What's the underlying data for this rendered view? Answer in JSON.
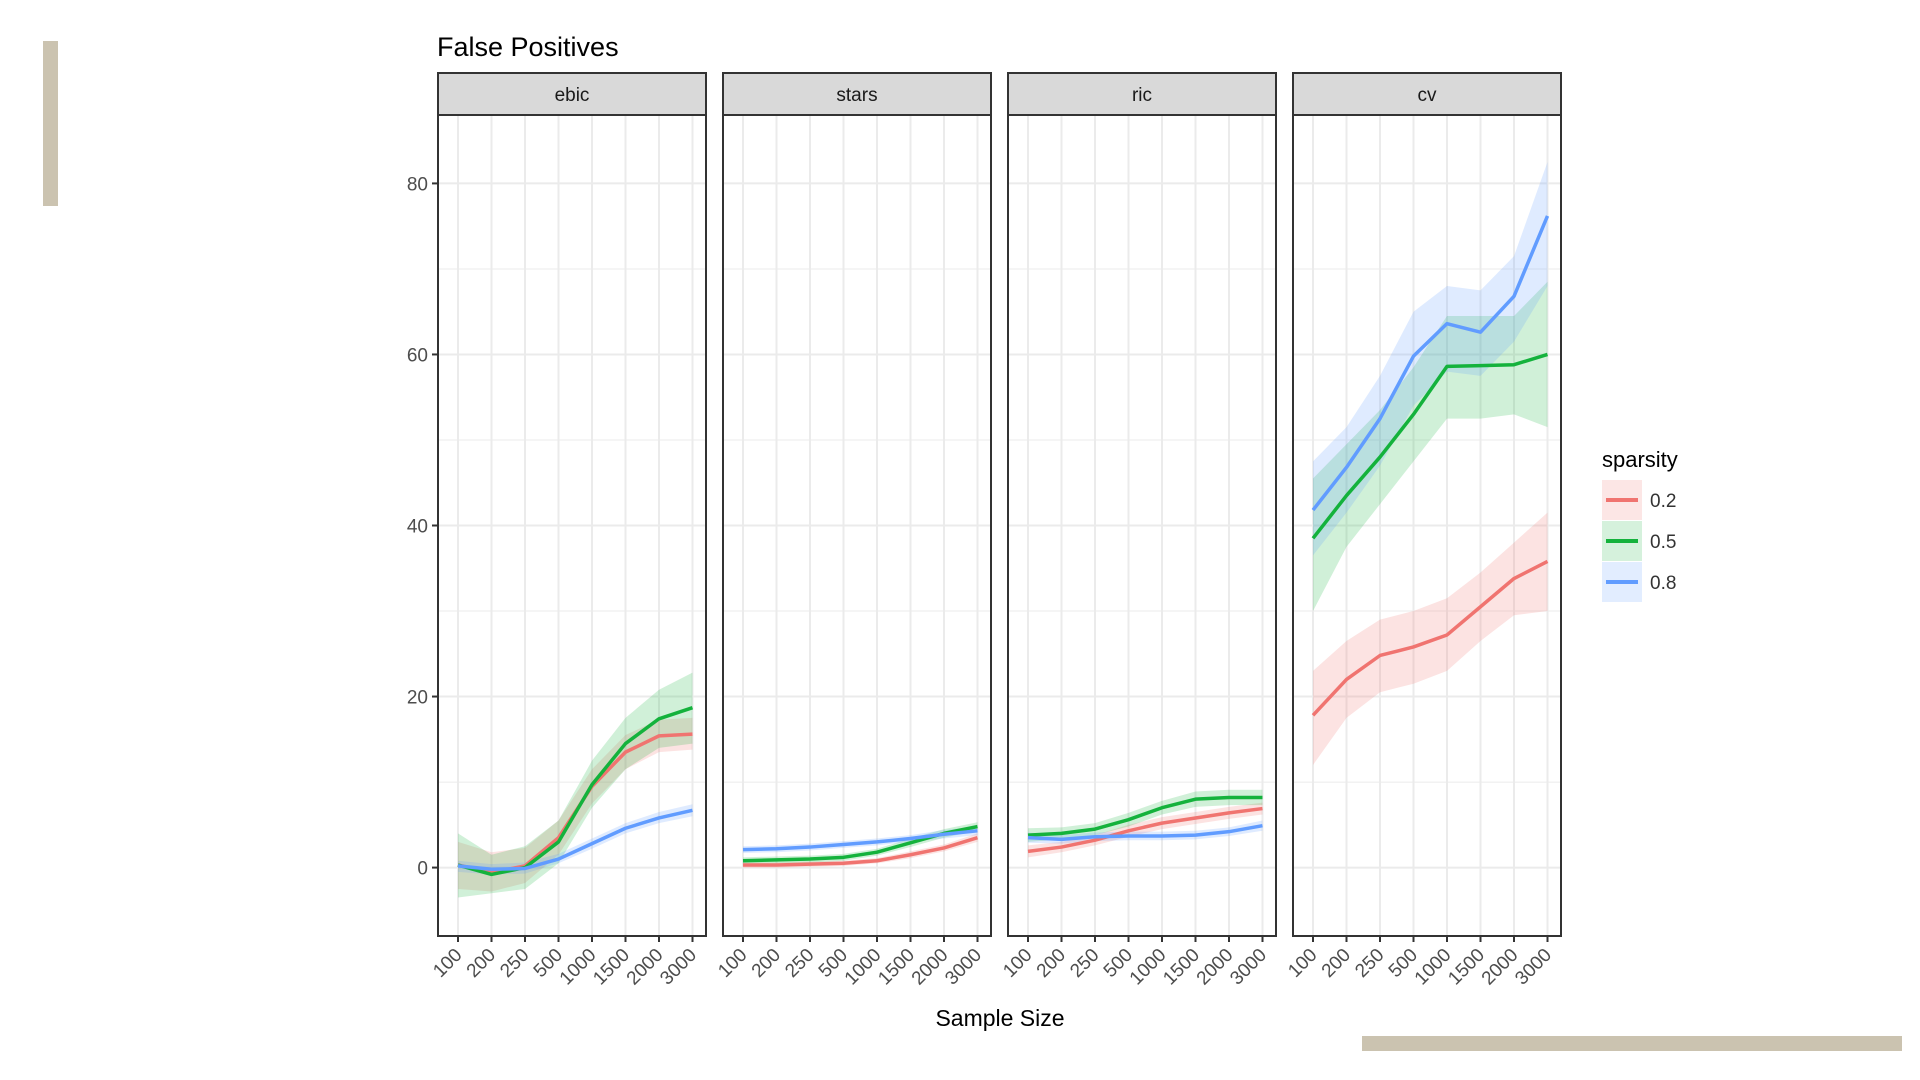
{
  "colors": {
    "0.2": "#f07470",
    "0.5": "#14b23c",
    "0.8": "#619cff",
    "deco": "#cbc3b0",
    "strip_fill": "#d9d9d9",
    "grid": "#ebebeb"
  },
  "chart_data": {
    "type": "line",
    "title": "False Positives",
    "xlabel": "Sample Size",
    "ylabel": "",
    "ylim": [
      -8,
      88
    ],
    "yticks": [
      0,
      20,
      40,
      60,
      80
    ],
    "categories": [
      "100",
      "200",
      "250",
      "500",
      "1000",
      "1500",
      "2000",
      "3000"
    ],
    "legend": {
      "title": "sparsity",
      "entries": [
        "0.2",
        "0.5",
        "0.8"
      ],
      "position": "right"
    },
    "facets": [
      {
        "name": "ebic",
        "series": [
          {
            "name": "0.2",
            "values": [
              0.3,
              -0.6,
              0.2,
              3.5,
              9.5,
              13.5,
              15.4,
              15.6
            ],
            "lower": [
              -2.5,
              -2.8,
              -1.8,
              1.5,
              7.5,
              11.5,
              13.5,
              13.8
            ],
            "upper": [
              3.0,
              1.8,
              2.3,
              5.5,
              11.5,
              15.5,
              17.3,
              17.5
            ]
          },
          {
            "name": "0.5",
            "values": [
              0.3,
              -0.8,
              0.0,
              3.0,
              9.7,
              14.5,
              17.4,
              18.7
            ],
            "lower": [
              -3.5,
              -3.0,
              -2.5,
              0.5,
              7.0,
              11.5,
              14.0,
              14.5
            ],
            "upper": [
              4.0,
              1.5,
              2.5,
              5.5,
              12.5,
              17.5,
              20.8,
              22.8
            ]
          },
          {
            "name": "0.8",
            "values": [
              0.2,
              -0.2,
              -0.1,
              1.0,
              2.8,
              4.6,
              5.8,
              6.7
            ],
            "lower": [
              -0.5,
              -0.8,
              -0.7,
              0.5,
              2.2,
              4.0,
              5.2,
              6.0
            ],
            "upper": [
              0.8,
              0.4,
              0.6,
              1.6,
              3.4,
              5.2,
              6.5,
              7.4
            ]
          }
        ]
      },
      {
        "name": "stars",
        "series": [
          {
            "name": "0.2",
            "values": [
              0.3,
              0.3,
              0.4,
              0.5,
              0.8,
              1.5,
              2.3,
              3.5
            ],
            "lower": [
              0.0,
              0.0,
              0.1,
              0.2,
              0.5,
              1.1,
              1.9,
              3.0
            ],
            "upper": [
              0.6,
              0.6,
              0.7,
              0.8,
              1.1,
              1.9,
              2.7,
              4.0
            ]
          },
          {
            "name": "0.5",
            "values": [
              0.8,
              0.9,
              1.0,
              1.2,
              1.8,
              2.9,
              4.0,
              4.8
            ],
            "lower": [
              0.4,
              0.5,
              0.6,
              0.8,
              1.4,
              2.4,
              3.5,
              4.3
            ],
            "upper": [
              1.2,
              1.3,
              1.4,
              1.6,
              2.2,
              3.4,
              4.5,
              5.3
            ]
          },
          {
            "name": "0.8",
            "values": [
              2.1,
              2.2,
              2.4,
              2.7,
              3.0,
              3.4,
              3.9,
              4.3
            ],
            "lower": [
              1.7,
              1.8,
              2.0,
              2.3,
              2.6,
              3.0,
              3.4,
              3.8
            ],
            "upper": [
              2.5,
              2.6,
              2.8,
              3.1,
              3.4,
              3.8,
              4.4,
              4.8
            ]
          }
        ]
      },
      {
        "name": "ric",
        "series": [
          {
            "name": "0.2",
            "values": [
              1.9,
              2.4,
              3.2,
              4.3,
              5.2,
              5.8,
              6.4,
              6.9
            ],
            "lower": [
              1.2,
              1.8,
              2.6,
              3.6,
              4.5,
              5.1,
              5.7,
              6.2
            ],
            "upper": [
              2.6,
              3.0,
              3.8,
              5.0,
              5.9,
              6.5,
              7.1,
              7.6
            ]
          },
          {
            "name": "0.5",
            "values": [
              3.8,
              4.0,
              4.5,
              5.6,
              7.0,
              8.0,
              8.2,
              8.2
            ],
            "lower": [
              3.0,
              3.3,
              3.8,
              4.8,
              6.2,
              7.1,
              7.3,
              7.3
            ],
            "upper": [
              4.6,
              4.7,
              5.2,
              6.4,
              7.8,
              8.9,
              9.1,
              9.1
            ]
          },
          {
            "name": "0.8",
            "values": [
              3.5,
              3.3,
              3.6,
              3.7,
              3.7,
              3.8,
              4.2,
              4.9
            ],
            "lower": [
              2.9,
              2.8,
              3.1,
              3.2,
              3.2,
              3.3,
              3.7,
              4.3
            ],
            "upper": [
              4.1,
              3.8,
              4.1,
              4.2,
              4.2,
              4.3,
              4.7,
              5.5
            ]
          }
        ]
      },
      {
        "name": "cv",
        "series": [
          {
            "name": "0.2",
            "values": [
              17.8,
              22.0,
              24.8,
              25.8,
              27.2,
              30.5,
              33.8,
              35.8
            ],
            "lower": [
              12.0,
              17.5,
              20.5,
              21.5,
              23.0,
              26.5,
              29.5,
              30.0
            ],
            "upper": [
              23.0,
              26.5,
              29.0,
              30.0,
              31.5,
              34.5,
              38.0,
              41.5
            ]
          },
          {
            "name": "0.5",
            "values": [
              38.5,
              43.5,
              48.0,
              53.0,
              58.6,
              58.7,
              58.8,
              60.0
            ],
            "lower": [
              30.0,
              37.5,
              42.5,
              47.5,
              52.5,
              52.5,
              53.0,
              51.5
            ],
            "upper": [
              45.5,
              49.5,
              53.5,
              58.5,
              64.5,
              64.5,
              64.5,
              68.5
            ]
          },
          {
            "name": "0.8",
            "values": [
              41.8,
              46.8,
              52.5,
              59.8,
              63.6,
              62.6,
              66.8,
              76.2
            ],
            "lower": [
              36.5,
              41.5,
              47.0,
              54.0,
              58.0,
              57.5,
              61.5,
              68.0
            ],
            "upper": [
              47.5,
              51.5,
              57.5,
              65.0,
              68.0,
              67.5,
              71.5,
              82.5
            ]
          }
        ]
      }
    ]
  }
}
